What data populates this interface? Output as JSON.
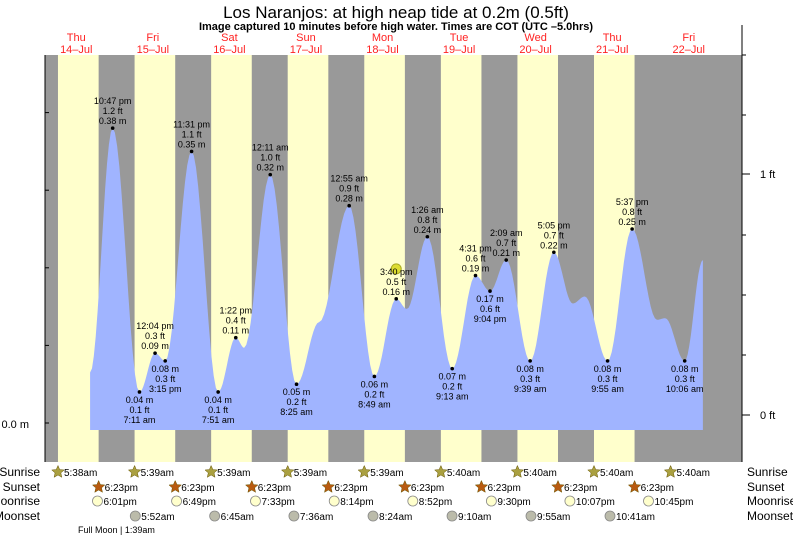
{
  "chart_data": {
    "type": "area",
    "title": "Los Naranjos: at high  neap tide at 0.2m (0.5ft)",
    "subtitle": "Image captured 10 minutes before high water. Times are COT (UTC –5.0hrs)",
    "y_left_label": "0.0 m",
    "y_right_labels": [
      "1 ft",
      "0 ft"
    ],
    "days": [
      {
        "dow": "Thu",
        "date": "14–Jul"
      },
      {
        "dow": "Fri",
        "date": "15–Jul"
      },
      {
        "dow": "Sat",
        "date": "16–Jul"
      },
      {
        "dow": "Sun",
        "date": "17–Jul"
      },
      {
        "dow": "Mon",
        "date": "18–Jul"
      },
      {
        "dow": "Tue",
        "date": "19–Jul"
      },
      {
        "dow": "Wed",
        "date": "20–Jul"
      },
      {
        "dow": "Thu",
        "date": "21–Jul"
      },
      {
        "dow": "Fri",
        "date": "22–Jul"
      }
    ],
    "tide_curve_hours_m": [
      [
        15.7,
        0.065
      ],
      [
        22.78,
        0.38
      ],
      [
        31.18,
        0.04
      ],
      [
        36.07,
        0.09
      ],
      [
        39.25,
        0.08
      ],
      [
        47.52,
        0.35
      ],
      [
        55.85,
        0.04
      ],
      [
        61.37,
        0.11
      ],
      [
        64,
        0.097
      ],
      [
        72.18,
        0.32
      ],
      [
        80.42,
        0.05
      ],
      [
        87.5,
        0.13
      ],
      [
        96.92,
        0.28
      ],
      [
        104.82,
        0.06
      ],
      [
        111.67,
        0.16
      ],
      [
        115,
        0.147
      ],
      [
        121.43,
        0.24
      ],
      [
        129.22,
        0.07
      ],
      [
        136.52,
        0.19
      ],
      [
        141.07,
        0.17
      ],
      [
        146.15,
        0.21
      ],
      [
        153.65,
        0.08
      ],
      [
        161.08,
        0.22
      ],
      [
        167,
        0.154
      ],
      [
        170.8,
        0.163
      ],
      [
        177.92,
        0.08
      ],
      [
        185.62,
        0.25
      ],
      [
        193.4,
        0.133
      ],
      [
        196,
        0.135
      ],
      [
        202.1,
        0.08
      ],
      [
        207.8,
        0.21
      ]
    ],
    "extremes": [
      {
        "type": "high",
        "time": "10:47 pm",
        "ft": "1.2 ft",
        "m": "0.38 m"
      },
      {
        "type": "low",
        "time": "7:11 am",
        "ft": "0.1 ft",
        "m": "0.04 m"
      },
      {
        "type": "high",
        "time": "12:04 pm",
        "ft": "0.3 ft",
        "m": "0.09 m"
      },
      {
        "type": "low",
        "time": "3:15 pm",
        "ft": "0.3 ft",
        "m": "0.08 m"
      },
      {
        "type": "high",
        "time": "11:31 pm",
        "ft": "1.1 ft",
        "m": "0.35 m"
      },
      {
        "type": "low",
        "time": "7:51 am",
        "ft": "0.1 ft",
        "m": "0.04 m"
      },
      {
        "type": "high",
        "time": "1:22 pm",
        "ft": "0.4 ft",
        "m": "0.11 m"
      },
      {
        "type": "high",
        "time": "12:11 am",
        "ft": "1.0 ft",
        "m": "0.32 m"
      },
      {
        "type": "low",
        "time": "8:25 am",
        "ft": "0.2 ft",
        "m": "0.05 m"
      },
      {
        "type": "high",
        "time": "12:55 am",
        "ft": "0.9 ft",
        "m": "0.28 m"
      },
      {
        "type": "low",
        "time": "8:49 am",
        "ft": "0.2 ft",
        "m": "0.06 m"
      },
      {
        "type": "high",
        "time": "3:40 pm",
        "ft": "0.5 ft",
        "m": "0.16 m"
      },
      {
        "type": "high",
        "time": "1:26 am",
        "ft": "0.8 ft",
        "m": "0.24 m"
      },
      {
        "type": "low",
        "time": "9:13 am",
        "ft": "0.2 ft",
        "m": "0.07 m"
      },
      {
        "type": "high",
        "time": "4:31 pm",
        "ft": "0.6 ft",
        "m": "0.19 m"
      },
      {
        "type": "low",
        "time": "9:04 pm",
        "ft": "0.6 ft",
        "m": "0.17 m"
      },
      {
        "type": "high",
        "time": "2:09 am",
        "ft": "0.7 ft",
        "m": "0.21 m"
      },
      {
        "type": "low",
        "time": "9:39 am",
        "ft": "0.3 ft",
        "m": "0.08 m"
      },
      {
        "type": "high",
        "time": "5:05 pm",
        "ft": "0.7 ft",
        "m": "0.22 m"
      },
      {
        "type": "low",
        "time": "9:55 am",
        "ft": "0.3 ft",
        "m": "0.08 m"
      },
      {
        "type": "high",
        "time": "5:37 pm",
        "ft": "0.8 ft",
        "m": "0.25 m"
      },
      {
        "type": "low",
        "time": "10:06 am",
        "ft": "0.3 ft",
        "m": "0.08 m"
      }
    ],
    "current_marker_time": "3:40 pm"
  },
  "rows": {
    "sunrise": "Sunrise",
    "sunset": "Sunset",
    "moonrise": "Moonrise",
    "moonset": "Moonset"
  },
  "sunrise": [
    "5:38am",
    "5:39am",
    "5:39am",
    "5:39am",
    "5:39am",
    "5:40am",
    "5:40am",
    "5:40am",
    "5:40am"
  ],
  "sunset": [
    "6:23pm",
    "6:23pm",
    "6:23pm",
    "6:23pm",
    "6:23pm",
    "6:23pm",
    "6:23pm",
    "6:23pm"
  ],
  "moonrise": [
    "6:01pm",
    "6:49pm",
    "7:33pm",
    "8:14pm",
    "8:52pm",
    "9:30pm",
    "10:07pm",
    "10:45pm"
  ],
  "moonset": [
    "5:52am",
    "6:45am",
    "7:36am",
    "8:24am",
    "9:10am",
    "9:55am",
    "10:41am"
  ],
  "full_moon": "Full Moon | 1:39am",
  "colors": {
    "day": "#ffffcc",
    "night": "#999999",
    "water": "#a0b4ff",
    "day_label": "#ff2222",
    "sunrise": "#aaa040",
    "sunset": "#b85a10",
    "moonrise": "#ffffcc",
    "moonset": "#bbbbaa"
  }
}
